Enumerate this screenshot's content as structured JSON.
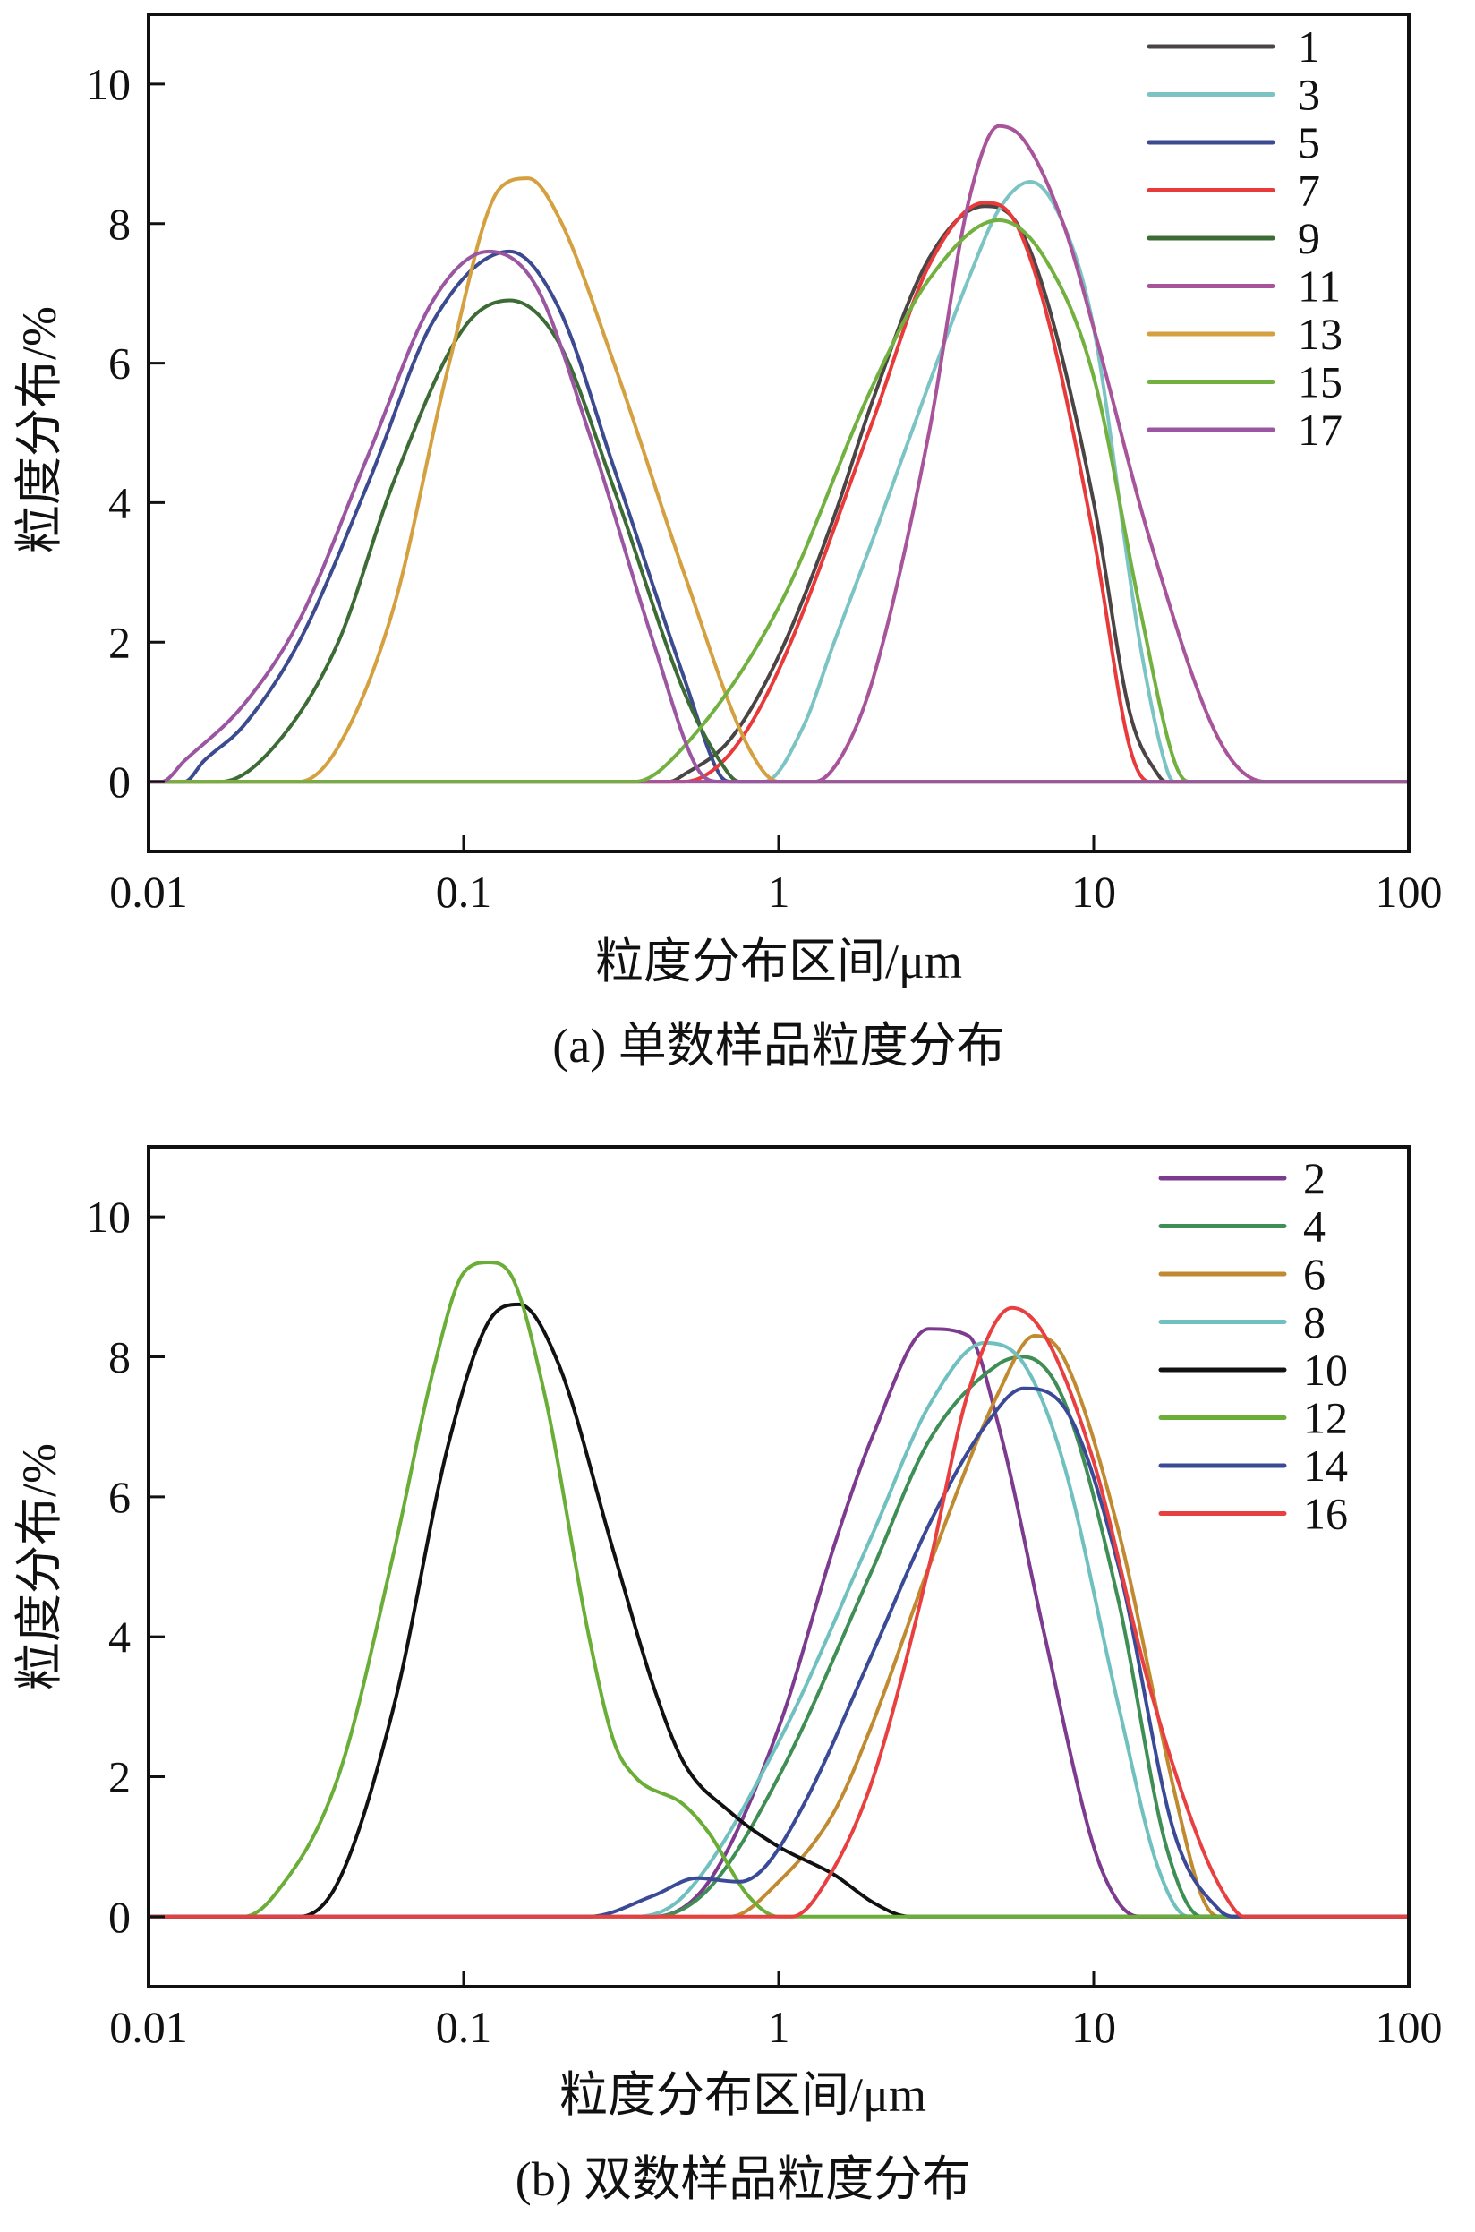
{
  "chart_data": [
    {
      "type": "line",
      "caption": "(a) 单数样品粒度分布",
      "xlabel": "粒度分布区间/μm",
      "ylabel": "粒度分布/%",
      "xscale": "log",
      "xlim": [
        0.01,
        100
      ],
      "ylim": [
        -1,
        11
      ],
      "xticks": [
        0.01,
        0.1,
        1,
        10,
        100
      ],
      "xtick_labels": [
        "0.01",
        "0.1",
        "1",
        "10",
        "100"
      ],
      "yticks": [
        0,
        2,
        4,
        6,
        8,
        10
      ],
      "ytick_labels": [
        "0",
        "2",
        "4",
        "6",
        "8",
        "10"
      ],
      "legend_position": "top-right",
      "grid": false,
      "series": [
        {
          "name": "1",
          "color": "#4a4444",
          "points": [
            [
              0.45,
              0
            ],
            [
              0.5,
              0.1
            ],
            [
              0.7,
              0.6
            ],
            [
              1,
              1.8
            ],
            [
              1.5,
              3.8
            ],
            [
              2,
              5.5
            ],
            [
              3,
              7.5
            ],
            [
              4.5,
              8.25
            ],
            [
              5.5,
              8.1
            ],
            [
              7,
              7
            ],
            [
              10,
              4
            ],
            [
              13,
              1
            ],
            [
              16,
              0.1
            ],
            [
              17,
              0
            ]
          ]
        },
        {
          "name": "3",
          "color": "#7cc4c4",
          "points": [
            [
              0.9,
              0
            ],
            [
              1.2,
              0.8
            ],
            [
              1.5,
              2
            ],
            [
              2,
              3.5
            ],
            [
              3,
              5.7
            ],
            [
              4,
              7.2
            ],
            [
              5,
              8.2
            ],
            [
              6.3,
              8.6
            ],
            [
              8,
              8
            ],
            [
              10,
              6.5
            ],
            [
              14,
              2
            ],
            [
              17,
              0.2
            ],
            [
              18,
              0
            ]
          ]
        },
        {
          "name": "5",
          "color": "#3c4a90",
          "points": [
            [
              0.013,
              0
            ],
            [
              0.015,
              0.3
            ],
            [
              0.02,
              0.8
            ],
            [
              0.03,
              2
            ],
            [
              0.05,
              4.3
            ],
            [
              0.08,
              6.6
            ],
            [
              0.14,
              7.6
            ],
            [
              0.2,
              6.8
            ],
            [
              0.3,
              4.5
            ],
            [
              0.5,
              1.5
            ],
            [
              0.65,
              0.1
            ],
            [
              0.7,
              0
            ]
          ]
        },
        {
          "name": "7",
          "color": "#e83a3a",
          "points": [
            [
              0.5,
              0
            ],
            [
              0.7,
              0.4
            ],
            [
              1,
              1.6
            ],
            [
              2,
              5.2
            ],
            [
              3,
              7.4
            ],
            [
              4.5,
              8.3
            ],
            [
              5.5,
              8.1
            ],
            [
              7,
              6.8
            ],
            [
              10,
              3.5
            ],
            [
              13,
              0.5
            ],
            [
              15,
              0
            ]
          ]
        },
        {
          "name": "9",
          "color": "#3d6b35",
          "points": [
            [
              0.017,
              0
            ],
            [
              0.025,
              0.5
            ],
            [
              0.04,
              2
            ],
            [
              0.06,
              4.3
            ],
            [
              0.1,
              6.5
            ],
            [
              0.14,
              6.9
            ],
            [
              0.2,
              6.3
            ],
            [
              0.3,
              4.2
            ],
            [
              0.5,
              1.3
            ],
            [
              0.65,
              0.3
            ],
            [
              0.75,
              0
            ]
          ]
        },
        {
          "name": "11",
          "color": "#a8549a",
          "points": [
            [
              1.3,
              0
            ],
            [
              1.6,
              0.4
            ],
            [
              2,
              1.5
            ],
            [
              3,
              5
            ],
            [
              4,
              8.3
            ],
            [
              5,
              9.4
            ],
            [
              6,
              9.2
            ],
            [
              8,
              8
            ],
            [
              10,
              6.5
            ],
            [
              15,
              3.5
            ],
            [
              25,
              0.6
            ],
            [
              35,
              0
            ]
          ]
        },
        {
          "name": "13",
          "color": "#d4a040",
          "points": [
            [
              0.03,
              0
            ],
            [
              0.04,
              0.5
            ],
            [
              0.06,
              2.5
            ],
            [
              0.09,
              6
            ],
            [
              0.13,
              8.5
            ],
            [
              0.16,
              8.65
            ],
            [
              0.2,
              8.1
            ],
            [
              0.3,
              6
            ],
            [
              0.5,
              3
            ],
            [
              0.8,
              0.5
            ],
            [
              1,
              0
            ]
          ]
        },
        {
          "name": "15",
          "color": "#72b040",
          "points": [
            [
              0.35,
              0
            ],
            [
              0.5,
              0.5
            ],
            [
              1,
              2.5
            ],
            [
              2,
              5.7
            ],
            [
              3,
              7.2
            ],
            [
              5,
              8.05
            ],
            [
              7,
              7.5
            ],
            [
              10,
              5.8
            ],
            [
              14,
              2.5
            ],
            [
              18,
              0.3
            ],
            [
              20,
              0
            ]
          ]
        },
        {
          "name": "17",
          "color": "#9a56a0",
          "points": [
            [
              0.011,
              0
            ],
            [
              0.013,
              0.3
            ],
            [
              0.02,
              1.1
            ],
            [
              0.03,
              2.3
            ],
            [
              0.05,
              4.7
            ],
            [
              0.08,
              6.9
            ],
            [
              0.12,
              7.6
            ],
            [
              0.17,
              7.1
            ],
            [
              0.25,
              5
            ],
            [
              0.4,
              2
            ],
            [
              0.55,
              0.2
            ],
            [
              0.65,
              0
            ]
          ]
        }
      ]
    },
    {
      "type": "line",
      "caption": "(b) 双数样品粒度分布",
      "xlabel": "粒度分布区间/μm",
      "ylabel": "粒度分布/%",
      "xscale": "log",
      "xlim": [
        0.01,
        100
      ],
      "ylim": [
        -1,
        11
      ],
      "xticks": [
        0.01,
        0.1,
        1,
        10,
        100
      ],
      "xtick_labels": [
        "0.01",
        "0.1",
        "1",
        "10",
        "100"
      ],
      "yticks": [
        0,
        2,
        4,
        6,
        8,
        10
      ],
      "ytick_labels": [
        "0",
        "2",
        "4",
        "6",
        "8",
        "10"
      ],
      "legend_position": "top-right",
      "grid": false,
      "series": [
        {
          "name": "2",
          "color": "#7c3b8e",
          "points": [
            [
              0.4,
              0
            ],
            [
              0.6,
              0.5
            ],
            [
              1,
              2.7
            ],
            [
              1.5,
              5.3
            ],
            [
              2,
              6.9
            ],
            [
              3,
              8.4
            ],
            [
              4,
              8.3
            ],
            [
              5,
              7
            ],
            [
              7,
              4
            ],
            [
              10,
              1
            ],
            [
              12,
              0.2
            ],
            [
              14,
              0
            ]
          ]
        },
        {
          "name": "4",
          "color": "#3e8e55",
          "points": [
            [
              0.4,
              0
            ],
            [
              0.6,
              0.4
            ],
            [
              1,
              2
            ],
            [
              2,
              5
            ],
            [
              3,
              6.8
            ],
            [
              5,
              7.9
            ],
            [
              6,
              8
            ],
            [
              8,
              7.4
            ],
            [
              12,
              4.5
            ],
            [
              17,
              1
            ],
            [
              22,
              0
            ]
          ]
        },
        {
          "name": "6",
          "color": "#c08a30",
          "points": [
            [
              0.7,
              0
            ],
            [
              1,
              0.5
            ],
            [
              1.5,
              1.5
            ],
            [
              2,
              2.8
            ],
            [
              3,
              5
            ],
            [
              5,
              7.5
            ],
            [
              6.5,
              8.3
            ],
            [
              8,
              8
            ],
            [
              12,
              5.5
            ],
            [
              18,
              1.8
            ],
            [
              22,
              0.3
            ],
            [
              25,
              0
            ]
          ]
        },
        {
          "name": "8",
          "color": "#70c0c0",
          "points": [
            [
              0.35,
              0
            ],
            [
              0.5,
              0.3
            ],
            [
              1,
              2.5
            ],
            [
              2,
              5.5
            ],
            [
              3,
              7.3
            ],
            [
              4.5,
              8.2
            ],
            [
              6,
              7.9
            ],
            [
              8,
              6.5
            ],
            [
              12,
              3
            ],
            [
              16,
              0.7
            ],
            [
              20,
              0
            ]
          ]
        },
        {
          "name": "10",
          "color": "#111111",
          "points": [
            [
              0.03,
              0
            ],
            [
              0.04,
              0.5
            ],
            [
              0.06,
              3
            ],
            [
              0.09,
              6.8
            ],
            [
              0.12,
              8.5
            ],
            [
              0.15,
              8.75
            ],
            [
              0.2,
              7.9
            ],
            [
              0.3,
              5.2
            ],
            [
              0.4,
              3.3
            ],
            [
              0.5,
              2.2
            ],
            [
              0.7,
              1.5
            ],
            [
              1,
              1
            ],
            [
              1.5,
              0.6
            ],
            [
              2,
              0.2
            ],
            [
              2.6,
              0
            ]
          ]
        },
        {
          "name": "12",
          "color": "#6aae38",
          "points": [
            [
              0.02,
              0
            ],
            [
              0.025,
              0.3
            ],
            [
              0.04,
              2
            ],
            [
              0.06,
              5.2
            ],
            [
              0.08,
              7.8
            ],
            [
              0.1,
              9.2
            ],
            [
              0.12,
              9.35
            ],
            [
              0.14,
              9.2
            ],
            [
              0.18,
              7.5
            ],
            [
              0.25,
              4
            ],
            [
              0.3,
              2.5
            ],
            [
              0.35,
              2
            ],
            [
              0.5,
              1.6
            ],
            [
              0.6,
              1.2
            ],
            [
              0.8,
              0.3
            ],
            [
              1,
              0
            ]
          ]
        },
        {
          "name": "14",
          "color": "#3a4a96",
          "points": [
            [
              0.25,
              0
            ],
            [
              0.4,
              0.3
            ],
            [
              0.55,
              0.55
            ],
            [
              0.75,
              0.5
            ],
            [
              0.9,
              0.7
            ],
            [
              1.2,
              1.6
            ],
            [
              2,
              3.8
            ],
            [
              3,
              5.6
            ],
            [
              4.5,
              7
            ],
            [
              6,
              7.55
            ],
            [
              8,
              7.3
            ],
            [
              12,
              5
            ],
            [
              18,
              1.2
            ],
            [
              25,
              0.1
            ],
            [
              28,
              0
            ]
          ]
        },
        {
          "name": "16",
          "color": "#e84040",
          "points": [
            [
              1.1,
              0
            ],
            [
              1.5,
              0.7
            ],
            [
              2,
              2
            ],
            [
              3,
              5
            ],
            [
              4,
              7.5
            ],
            [
              5.5,
              8.7
            ],
            [
              7,
              8.3
            ],
            [
              10,
              6.5
            ],
            [
              15,
              3.3
            ],
            [
              22,
              1
            ],
            [
              27,
              0.2
            ],
            [
              30,
              0
            ]
          ]
        }
      ]
    }
  ]
}
